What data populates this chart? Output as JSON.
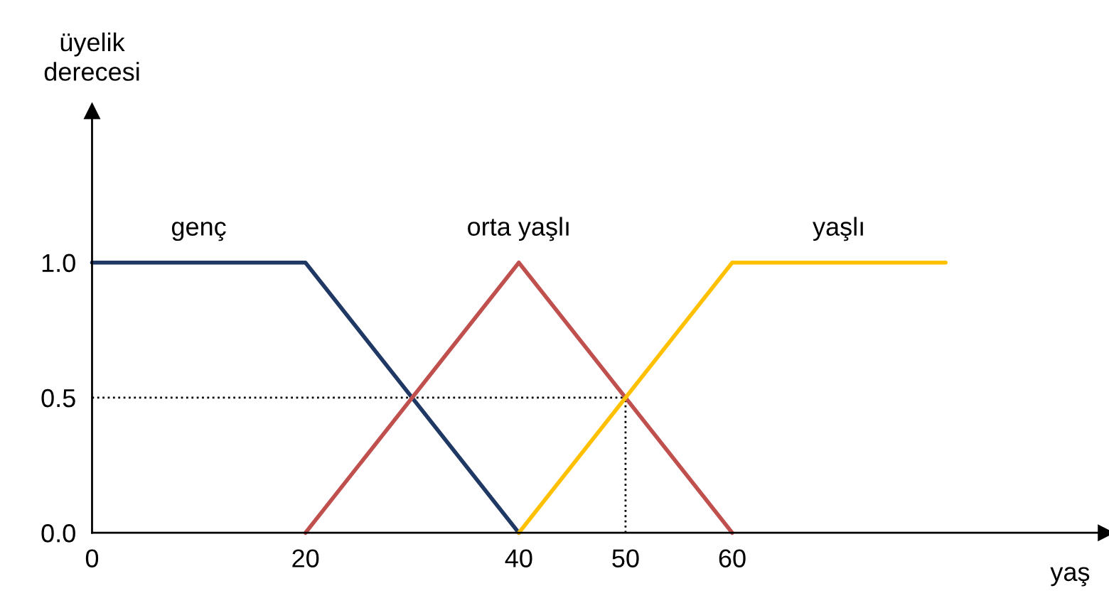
{
  "chart_data": {
    "type": "line",
    "xlabel": "yaş",
    "ylabel": "üyelik\nderecesi",
    "series": [
      {
        "name": "genç",
        "color": "#1f3864",
        "x": [
          0,
          20,
          40
        ],
        "values": [
          1,
          1,
          0
        ]
      },
      {
        "name": "orta yaşlı",
        "color": "#c0504d",
        "x": [
          20,
          40,
          60
        ],
        "values": [
          0,
          1,
          0
        ]
      },
      {
        "name": "yaşlı",
        "color": "#ffc000",
        "x": [
          40,
          60,
          80
        ],
        "values": [
          0,
          1,
          1
        ]
      }
    ],
    "xlim": [
      0,
      95
    ],
    "ylim": [
      0,
      1.56
    ],
    "xticks": [
      0,
      20,
      40,
      50,
      60
    ],
    "yticks": [
      {
        "value": 0,
        "label": "0.0"
      },
      {
        "value": 0.5,
        "label": "0.5"
      },
      {
        "value": 1,
        "label": "1.0"
      }
    ],
    "ref_lines": [
      {
        "axis": "y",
        "value": 0.5,
        "line_style": "dotted",
        "color": "#000000"
      },
      {
        "axis": "x",
        "value": 50,
        "line_style": "dotted",
        "color": "#000000"
      }
    ],
    "grid": false,
    "legend": false,
    "marker": "none",
    "line_style": "solid"
  }
}
